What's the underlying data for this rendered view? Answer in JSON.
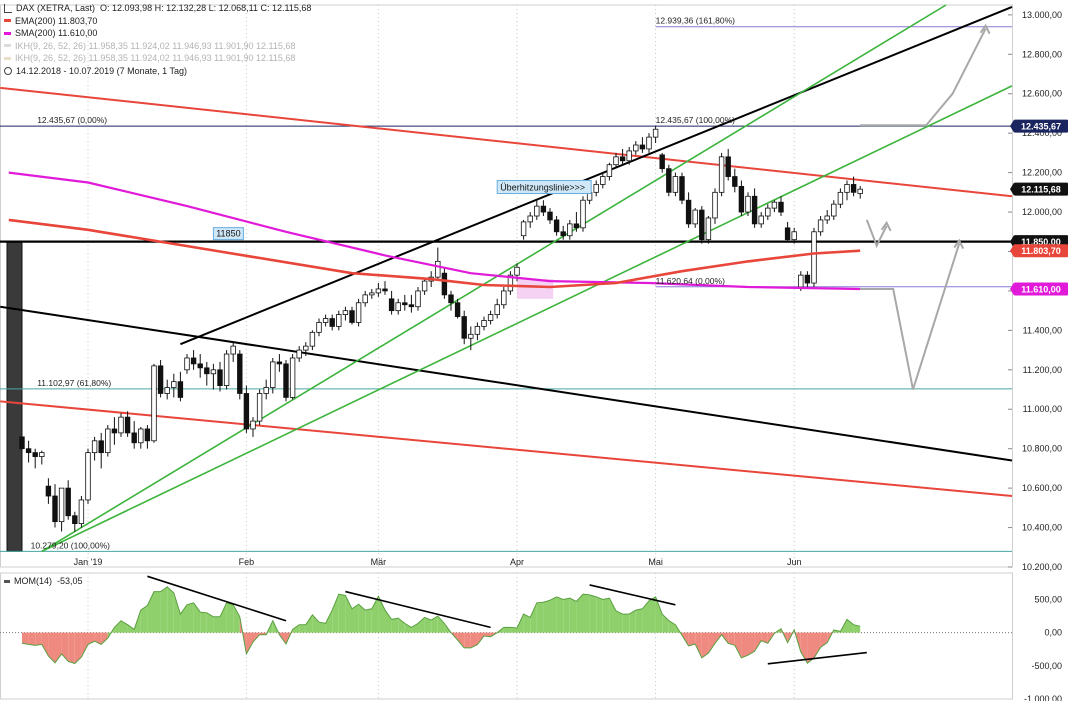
{
  "header": {
    "title": "DAX (XETRA, Last)",
    "ohlc": "O: 12.093,98   H: 12.132,28   L: 12.068,11   C: 12.115,68",
    "range": "14.12.2018 - 10.07.2019   (7 Monate, 1 Tag)"
  },
  "legend": [
    {
      "label": "EMA(200)  11.803,70",
      "color": "#e8463a",
      "faded": false
    },
    {
      "label": "SMA(200)  11.610,00",
      "color": "#e11ad9",
      "faded": false
    },
    {
      "label": "IKH(9, 26, 52, 26)  11.958,35  11.924,02  11.946,93  11.901,90  12.115,68",
      "color": "#999999",
      "faded": true
    },
    {
      "label": "IKH(9, 26, 52, 26)  11.958,35  11.924,02  11.946,93  11.901,90  12.115,68",
      "color": "#c8a060",
      "faded": true
    }
  ],
  "chart_data": {
    "type": "candlestick",
    "y_range": [
      10200,
      13050
    ],
    "y_ticks": [
      {
        "v": 10200,
        "label": "10.200,00"
      },
      {
        "v": 10400,
        "label": "10.400,00"
      },
      {
        "v": 10600,
        "label": "10.600,00"
      },
      {
        "v": 10800,
        "label": "10.800,00"
      },
      {
        "v": 11000,
        "label": "11.000,00"
      },
      {
        "v": 11200,
        "label": "11.200,00"
      },
      {
        "v": 11400,
        "label": "11.400,00"
      },
      {
        "v": 11600,
        "label": "11.600,00"
      },
      {
        "v": 11800,
        "label": "11.800,00"
      },
      {
        "v": 12000,
        "label": "12.000,00"
      },
      {
        "v": 12200,
        "label": "12.200,00"
      },
      {
        "v": 12400,
        "label": "12.400,00"
      },
      {
        "v": 12600,
        "label": "12.600,00"
      },
      {
        "v": 12800,
        "label": "12.800,00"
      },
      {
        "v": 13000,
        "label": "13.000,00"
      }
    ],
    "x_ticks": [
      {
        "i": 10,
        "label": "Jan '19"
      },
      {
        "i": 34,
        "label": "Feb"
      },
      {
        "i": 54,
        "label": "Mär"
      },
      {
        "i": 75,
        "label": "Apr"
      },
      {
        "i": 96,
        "label": "Mai"
      },
      {
        "i": 117,
        "label": "Jun"
      }
    ],
    "candles": [
      [
        10860,
        10910,
        10760,
        10800
      ],
      [
        10800,
        10840,
        10730,
        10780
      ],
      [
        10780,
        10800,
        10700,
        10760
      ],
      [
        10760,
        10790,
        10720,
        10780
      ],
      [
        10610,
        10650,
        10520,
        10560
      ],
      [
        10560,
        10620,
        10400,
        10430
      ],
      [
        10430,
        10600,
        10380,
        10600
      ],
      [
        10600,
        10640,
        10440,
        10460
      ],
      [
        10460,
        10480,
        10380,
        10420
      ],
      [
        10420,
        10560,
        10400,
        10540
      ],
      [
        10540,
        10800,
        10520,
        10780
      ],
      [
        10780,
        10860,
        10740,
        10840
      ],
      [
        10840,
        10880,
        10700,
        10780
      ],
      [
        10780,
        10920,
        10760,
        10900
      ],
      [
        10900,
        10960,
        10820,
        10880
      ],
      [
        10880,
        10980,
        10860,
        10960
      ],
      [
        10960,
        10990,
        10860,
        10880
      ],
      [
        10880,
        10940,
        10800,
        10830
      ],
      [
        10830,
        10910,
        10800,
        10900
      ],
      [
        10900,
        10920,
        10800,
        10840
      ],
      [
        10840,
        11230,
        10830,
        11220
      ],
      [
        11220,
        11250,
        11060,
        11080
      ],
      [
        11080,
        11150,
        11050,
        11110
      ],
      [
        11110,
        11180,
        11060,
        11140
      ],
      [
        11140,
        11190,
        11040,
        11060
      ],
      [
        11200,
        11280,
        11180,
        11260
      ],
      [
        11260,
        11300,
        11200,
        11230
      ],
      [
        11230,
        11280,
        11160,
        11210
      ],
      [
        11210,
        11240,
        11120,
        11180
      ],
      [
        11180,
        11230,
        11100,
        11200
      ],
      [
        11200,
        11240,
        11090,
        11120
      ],
      [
        11120,
        11300,
        11100,
        11280
      ],
      [
        11280,
        11340,
        11240,
        11320
      ],
      [
        11280,
        11300,
        11050,
        11080
      ],
      [
        11080,
        11120,
        10880,
        10900
      ],
      [
        10900,
        10960,
        10860,
        10940
      ],
      [
        10940,
        11100,
        10920,
        11080
      ],
      [
        11080,
        11150,
        11050,
        11110
      ],
      [
        11110,
        11260,
        11080,
        11240
      ],
      [
        11240,
        11280,
        11190,
        11230
      ],
      [
        11230,
        11250,
        11040,
        11060
      ],
      [
        11060,
        11280,
        11050,
        11260
      ],
      [
        11260,
        11320,
        11240,
        11300
      ],
      [
        11300,
        11340,
        11270,
        11320
      ],
      [
        11320,
        11400,
        11300,
        11390
      ],
      [
        11390,
        11460,
        11370,
        11440
      ],
      [
        11440,
        11480,
        11420,
        11460
      ],
      [
        11460,
        11480,
        11400,
        11420
      ],
      [
        11420,
        11500,
        11400,
        11480
      ],
      [
        11480,
        11520,
        11450,
        11500
      ],
      [
        11500,
        11520,
        11430,
        11440
      ],
      [
        11440,
        11560,
        11420,
        11540
      ],
      [
        11540,
        11600,
        11520,
        11580
      ],
      [
        11580,
        11610,
        11560,
        11590
      ],
      [
        11590,
        11640,
        11570,
        11610
      ],
      [
        11610,
        11650,
        11580,
        11600
      ],
      [
        11560,
        11600,
        11480,
        11500
      ],
      [
        11500,
        11560,
        11480,
        11540
      ],
      [
        11540,
        11580,
        11500,
        11530
      ],
      [
        11530,
        11580,
        11490,
        11520
      ],
      [
        11520,
        11620,
        11500,
        11600
      ],
      [
        11600,
        11660,
        11580,
        11650
      ],
      [
        11650,
        11700,
        11620,
        11670
      ],
      [
        11670,
        11820,
        11650,
        11750
      ],
      [
        11690,
        11720,
        11560,
        11580
      ],
      [
        11580,
        11600,
        11500,
        11540
      ],
      [
        11540,
        11560,
        11460,
        11470
      ],
      [
        11470,
        11500,
        11330,
        11360
      ],
      [
        11360,
        11420,
        11300,
        11380
      ],
      [
        11380,
        11440,
        11350,
        11420
      ],
      [
        11420,
        11470,
        11400,
        11450
      ],
      [
        11450,
        11500,
        11430,
        11480
      ],
      [
        11480,
        11560,
        11460,
        11530
      ],
      [
        11530,
        11620,
        11510,
        11600
      ],
      [
        11600,
        11700,
        11580,
        11680
      ],
      [
        11680,
        11740,
        11650,
        11720
      ],
      [
        11880,
        11960,
        11860,
        11950
      ],
      [
        11950,
        12000,
        11920,
        11980
      ],
      [
        11980,
        12060,
        11960,
        12030
      ],
      [
        12030,
        12060,
        11980,
        12000
      ],
      [
        12000,
        12020,
        11940,
        11960
      ],
      [
        11960,
        11980,
        11880,
        11900
      ],
      [
        11900,
        11930,
        11860,
        11880
      ],
      [
        11880,
        11960,
        11860,
        11940
      ],
      [
        11940,
        12000,
        11900,
        11920
      ],
      [
        11920,
        12080,
        11900,
        12060
      ],
      [
        12060,
        12120,
        12040,
        12100
      ],
      [
        12100,
        12160,
        12080,
        12140
      ],
      [
        12140,
        12200,
        12120,
        12180
      ],
      [
        12180,
        12250,
        12160,
        12240
      ],
      [
        12240,
        12300,
        12220,
        12280
      ],
      [
        12280,
        12320,
        12240,
        12260
      ],
      [
        12260,
        12330,
        12240,
        12310
      ],
      [
        12310,
        12360,
        12290,
        12340
      ],
      [
        12340,
        12380,
        12300,
        12320
      ],
      [
        12320,
        12400,
        12300,
        12380
      ],
      [
        12380,
        12435,
        12350,
        12420
      ],
      [
        12290,
        12300,
        12200,
        12220
      ],
      [
        12220,
        12240,
        12080,
        12100
      ],
      [
        12100,
        12200,
        12080,
        12180
      ],
      [
        12180,
        12200,
        12040,
        12060
      ],
      [
        12060,
        12100,
        11920,
        11940
      ],
      [
        11940,
        12020,
        11920,
        12010
      ],
      [
        12010,
        12030,
        11840,
        11860
      ],
      [
        11860,
        11980,
        11840,
        11970
      ],
      [
        11970,
        12120,
        11940,
        12100
      ],
      [
        12100,
        12300,
        12080,
        12280
      ],
      [
        12280,
        12320,
        12160,
        12180
      ],
      [
        12180,
        12220,
        12100,
        12130
      ],
      [
        12130,
        12160,
        11980,
        12000
      ],
      [
        12000,
        12100,
        11980,
        12080
      ],
      [
        12080,
        12120,
        11920,
        11940
      ],
      [
        11940,
        12000,
        11920,
        11980
      ],
      [
        11980,
        12040,
        11960,
        12020
      ],
      [
        12020,
        12060,
        12000,
        12050
      ],
      [
        12050,
        12080,
        11980,
        12000
      ],
      [
        11920,
        11950,
        11850,
        11860
      ],
      [
        11860,
        11920,
        11840,
        11900
      ],
      [
        11620,
        11700,
        11600,
        11680
      ],
      [
        11680,
        11700,
        11620,
        11640
      ],
      [
        11640,
        11920,
        11620,
        11900
      ],
      [
        11900,
        11980,
        11880,
        11960
      ],
      [
        11960,
        12010,
        11940,
        11980
      ],
      [
        11980,
        12060,
        11960,
        12040
      ],
      [
        12040,
        12120,
        12020,
        12100
      ],
      [
        12100,
        12160,
        12060,
        12140
      ],
      [
        12140,
        12180,
        12080,
        12100
      ],
      [
        12094,
        12132,
        12068,
        12116
      ]
    ],
    "ema200": [
      [
        -2,
        11960
      ],
      [
        10,
        11910
      ],
      [
        30,
        11800
      ],
      [
        50,
        11690
      ],
      [
        62,
        11660
      ],
      [
        70,
        11630
      ],
      [
        80,
        11620
      ],
      [
        90,
        11640
      ],
      [
        100,
        11700
      ],
      [
        110,
        11750
      ],
      [
        120,
        11790
      ],
      [
        127,
        11804
      ]
    ],
    "sma200": [
      [
        -2,
        12200
      ],
      [
        10,
        12150
      ],
      [
        25,
        12030
      ],
      [
        40,
        11900
      ],
      [
        55,
        11780
      ],
      [
        68,
        11690
      ],
      [
        80,
        11650
      ],
      [
        95,
        11640
      ],
      [
        110,
        11620
      ],
      [
        127,
        11610
      ]
    ],
    "price_labels": [
      {
        "v": 12940,
        "label": "12.939,36 (161,80%)",
        "x": 96
      },
      {
        "v": 12436,
        "label": "12.435,67 (100,00%)",
        "x": 96
      },
      {
        "v": 12436,
        "label": "12.435,67 (0,00%)",
        "x": 2
      },
      {
        "v": 11621,
        "label": "11.620,64 (0,00%)",
        "x": 96
      },
      {
        "v": 11103,
        "label": "11.102,97 (61,80%)",
        "x": 2
      },
      {
        "v": 10279,
        "label": "10.279,20 (100,00%)",
        "x": 1
      }
    ],
    "boxed_label": {
      "text": "11850",
      "v": 11850
    },
    "annotation": {
      "text": "Überhitzungslinie>>>"
    },
    "last_value_tags": [
      {
        "v": 12436,
        "label": "12.435,67",
        "bg": "#1a2560"
      },
      {
        "v": 12116,
        "label": "12.115,68",
        "bg": "#111111"
      },
      {
        "v": 11850,
        "label": "11.850,00",
        "bg": "#111111"
      },
      {
        "v": 11804,
        "label": "11.803,70",
        "bg": "#e8463a"
      },
      {
        "v": 11610,
        "label": "11.610,00",
        "bg": "#e11ad9"
      }
    ],
    "momentum": {
      "label": "MOM(14)",
      "value": "-53,05",
      "range": [
        -1000,
        900
      ],
      "ticks": [
        {
          "v": 500,
          "label": "500,00"
        },
        {
          "v": 0,
          "label": "0,00"
        },
        {
          "v": -500,
          "label": "-500,00"
        },
        {
          "v": -1000,
          "label": "-1.000,00"
        }
      ]
    }
  }
}
